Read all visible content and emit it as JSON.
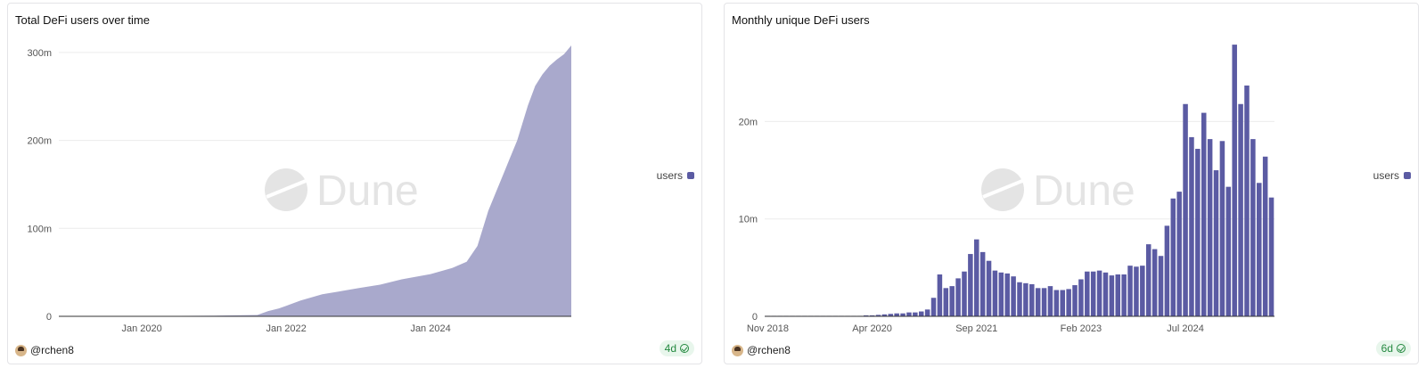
{
  "watermark": "Dune",
  "colors": {
    "area": "#a9a9cc",
    "bar": "#5b5ba3",
    "grid": "#ececec",
    "badge": "#23883f"
  },
  "cards": [
    {
      "title": "Total DeFi users over time",
      "legend": "users",
      "author": "@rchen8",
      "age": "4d"
    },
    {
      "title": "Monthly unique DeFi users",
      "legend": "users",
      "author": "@rchen8",
      "age": "6d"
    }
  ],
  "chart_data": [
    {
      "type": "area",
      "title": "Total DeFi users over time",
      "ylim": [
        0,
        310
      ],
      "y_ticks": [
        "0",
        "100m",
        "200m",
        "300m"
      ],
      "y_tick_values": [
        0,
        100,
        200,
        300
      ],
      "x_ticks": [
        "Jan 2020",
        "Jan 2022",
        "Jan 2024"
      ],
      "x_tick_values": [
        2020.0,
        2022.0,
        2024.0
      ],
      "xlim": [
        2018.85,
        2025.95
      ],
      "unit": "m",
      "series": [
        {
          "name": "users",
          "x": [
            2018.85,
            2020.0,
            2021.0,
            2021.6,
            2021.75,
            2021.9,
            2022.0,
            2022.2,
            2022.5,
            2023.0,
            2023.3,
            2023.6,
            2024.0,
            2024.3,
            2024.5,
            2024.65,
            2024.8,
            2024.9,
            2025.0,
            2025.1,
            2025.2,
            2025.35,
            2025.45,
            2025.55,
            2025.65,
            2025.75,
            2025.85,
            2025.95
          ],
          "y": [
            0,
            0.3,
            0.8,
            1.5,
            6,
            9,
            12,
            18,
            25,
            32,
            36,
            42,
            48,
            55,
            62,
            80,
            120,
            140,
            160,
            180,
            200,
            240,
            262,
            275,
            285,
            292,
            298,
            308
          ]
        }
      ],
      "grid": true,
      "legend_position": "right"
    },
    {
      "type": "bar",
      "title": "Monthly unique DeFi users",
      "ylim": [
        0,
        28
      ],
      "y_ticks": [
        "0",
        "10m",
        "20m"
      ],
      "y_tick_values": [
        0,
        10,
        20
      ],
      "x_ticks": [
        "Nov 2018",
        "Apr 2020",
        "Sep 2021",
        "Feb 2023",
        "Jul 2024"
      ],
      "x_tick_index": [
        0,
        17,
        34,
        51,
        68
      ],
      "unit": "m",
      "series": [
        {
          "name": "users",
          "values": [
            0.05,
            0.05,
            0.05,
            0.05,
            0.05,
            0.05,
            0.05,
            0.05,
            0.05,
            0.05,
            0.05,
            0.05,
            0.05,
            0.05,
            0.05,
            0.05,
            0.1,
            0.1,
            0.15,
            0.2,
            0.25,
            0.3,
            0.3,
            0.4,
            0.4,
            0.5,
            0.7,
            1.9,
            4.3,
            2.9,
            3.1,
            3.9,
            4.6,
            6.4,
            7.9,
            6.6,
            5.7,
            4.7,
            4.5,
            4.4,
            4.1,
            3.5,
            3.4,
            3.3,
            2.9,
            2.9,
            3.1,
            2.7,
            2.7,
            2.8,
            3.2,
            3.8,
            4.6,
            4.6,
            4.7,
            4.5,
            4.2,
            4.3,
            4.3,
            5.2,
            5.1,
            5.2,
            7.4,
            6.9,
            6.2,
            9.3,
            12.1,
            12.8,
            21.8,
            18.4,
            17.2,
            20.9,
            18.2,
            15.0,
            18.0,
            13.3,
            27.9,
            21.8,
            23.7,
            18.2,
            13.7,
            16.4,
            12.2
          ]
        }
      ],
      "grid": true,
      "legend_position": "right"
    }
  ]
}
